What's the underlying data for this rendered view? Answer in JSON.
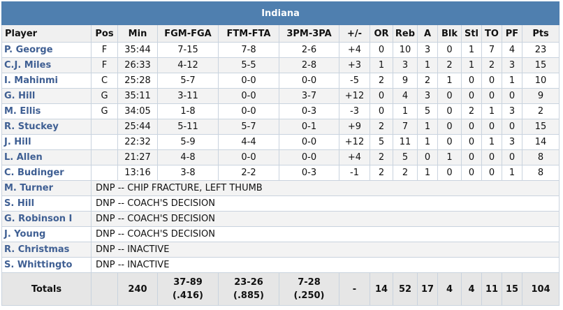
{
  "team": "Indiana",
  "columns": [
    "Player",
    "Pos",
    "Min",
    "FGM-FGA",
    "FTM-FTA",
    "3PM-3PA",
    "+/-",
    "OR",
    "Reb",
    "A",
    "Blk",
    "Stl",
    "TO",
    "PF",
    "Pts"
  ],
  "players": [
    {
      "name": "P. George",
      "pos": "F",
      "min": "35:44",
      "fg": "7-15",
      "ft": "7-8",
      "tp": "2-6",
      "pm": "+4",
      "or": "0",
      "reb": "10",
      "a": "3",
      "blk": "0",
      "stl": "1",
      "to": "7",
      "pf": "4",
      "pts": "23"
    },
    {
      "name": "C.J. Miles",
      "pos": "F",
      "min": "26:33",
      "fg": "4-12",
      "ft": "5-5",
      "tp": "2-8",
      "pm": "+3",
      "or": "1",
      "reb": "3",
      "a": "1",
      "blk": "2",
      "stl": "1",
      "to": "2",
      "pf": "3",
      "pts": "15"
    },
    {
      "name": "I. Mahinmi",
      "pos": "C",
      "min": "25:28",
      "fg": "5-7",
      "ft": "0-0",
      "tp": "0-0",
      "pm": "-5",
      "or": "2",
      "reb": "9",
      "a": "2",
      "blk": "1",
      "stl": "0",
      "to": "0",
      "pf": "1",
      "pts": "10"
    },
    {
      "name": "G. Hill",
      "pos": "G",
      "min": "35:11",
      "fg": "3-11",
      "ft": "0-0",
      "tp": "3-7",
      "pm": "+12",
      "or": "0",
      "reb": "4",
      "a": "3",
      "blk": "0",
      "stl": "0",
      "to": "0",
      "pf": "0",
      "pts": "9"
    },
    {
      "name": "M. Ellis",
      "pos": "G",
      "min": "34:05",
      "fg": "1-8",
      "ft": "0-0",
      "tp": "0-3",
      "pm": "-3",
      "or": "0",
      "reb": "1",
      "a": "5",
      "blk": "0",
      "stl": "2",
      "to": "1",
      "pf": "3",
      "pts": "2"
    },
    {
      "name": "R. Stuckey",
      "pos": "",
      "min": "25:44",
      "fg": "5-11",
      "ft": "5-7",
      "tp": "0-1",
      "pm": "+9",
      "or": "2",
      "reb": "7",
      "a": "1",
      "blk": "0",
      "stl": "0",
      "to": "0",
      "pf": "0",
      "pts": "15"
    },
    {
      "name": "J. Hill",
      "pos": "",
      "min": "22:32",
      "fg": "5-9",
      "ft": "4-4",
      "tp": "0-0",
      "pm": "+12",
      "or": "5",
      "reb": "11",
      "a": "1",
      "blk": "0",
      "stl": "0",
      "to": "1",
      "pf": "3",
      "pts": "14"
    },
    {
      "name": "L. Allen",
      "pos": "",
      "min": "21:27",
      "fg": "4-8",
      "ft": "0-0",
      "tp": "0-0",
      "pm": "+4",
      "or": "2",
      "reb": "5",
      "a": "0",
      "blk": "1",
      "stl": "0",
      "to": "0",
      "pf": "0",
      "pts": "8"
    },
    {
      "name": "C. Budinger",
      "pos": "",
      "min": "13:16",
      "fg": "3-8",
      "ft": "2-2",
      "tp": "0-3",
      "pm": "-1",
      "or": "2",
      "reb": "2",
      "a": "1",
      "blk": "0",
      "stl": "0",
      "to": "0",
      "pf": "1",
      "pts": "8"
    }
  ],
  "dnp": [
    {
      "name": "M. Turner",
      "note": "DNP -- CHIP FRACTURE, LEFT THUMB"
    },
    {
      "name": "S. Hill",
      "note": "DNP -- COACH'S DECISION"
    },
    {
      "name": "G. Robinson I",
      "note": "DNP -- COACH'S DECISION"
    },
    {
      "name": "J. Young",
      "note": "DNP -- COACH'S DECISION"
    },
    {
      "name": "R. Christmas",
      "note": "DNP -- INACTIVE"
    },
    {
      "name": "S. Whittingto",
      "note": "DNP -- INACTIVE"
    }
  ],
  "totals": {
    "label": "Totals",
    "min": "240",
    "fg": "37-89",
    "fg_pct": "(.416)",
    "ft": "23-26",
    "ft_pct": "(.885)",
    "tp": "7-28",
    "tp_pct": "(.250)",
    "pm": "-",
    "or": "14",
    "reb": "52",
    "a": "17",
    "blk": "4",
    "stl": "4",
    "to": "11",
    "pf": "15",
    "pts": "104"
  }
}
